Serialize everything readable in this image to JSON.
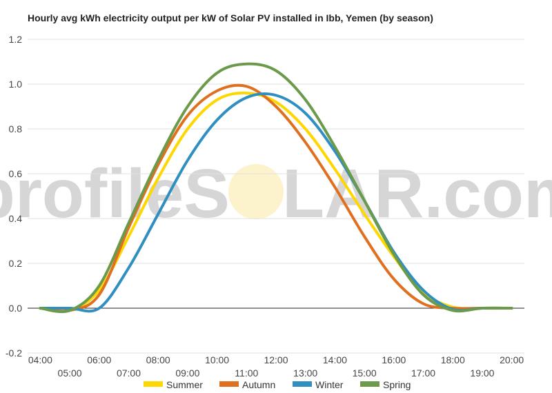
{
  "watermark": {
    "left": "profileS",
    "right": "LAR.com"
  },
  "chart_data": {
    "type": "line",
    "title": "Hourly avg kWh electricity output per kW of Solar PV installed in Ibb, Yemen (by season)",
    "xlabel": "",
    "ylabel": "",
    "x_ticks": [
      "04:00",
      "05:00",
      "06:00",
      "07:00",
      "08:00",
      "09:00",
      "10:00",
      "11:00",
      "12:00",
      "13:00",
      "14:00",
      "15:00",
      "16:00",
      "17:00",
      "18:00",
      "19:00",
      "20:00"
    ],
    "y_ticks": [
      "-0.2",
      "0.0",
      "0.2",
      "0.4",
      "0.6",
      "0.8",
      "1.0",
      "1.2"
    ],
    "x_range": [
      4,
      20
    ],
    "ylim": [
      -0.2,
      1.2
    ],
    "grid": true,
    "legend": "bottom",
    "series": [
      {
        "name": "Summer",
        "color": "#FFD700",
        "x": [
          4,
          5,
          6,
          7,
          8,
          9,
          10,
          11,
          12,
          13,
          14,
          15,
          16,
          17,
          18,
          19,
          20
        ],
        "y": [
          0.0,
          -0.01,
          0.08,
          0.32,
          0.58,
          0.8,
          0.93,
          0.96,
          0.92,
          0.8,
          0.62,
          0.42,
          0.23,
          0.07,
          0.005,
          0.0,
          0.0
        ]
      },
      {
        "name": "Autumn",
        "color": "#E07020",
        "x": [
          4,
          5,
          6,
          7,
          8,
          9,
          10,
          11,
          12,
          13,
          14,
          15,
          16,
          17,
          18,
          19,
          20
        ],
        "y": [
          0.0,
          -0.01,
          0.06,
          0.36,
          0.64,
          0.86,
          0.97,
          0.99,
          0.9,
          0.74,
          0.54,
          0.32,
          0.13,
          0.02,
          0.0,
          0.0,
          0.0
        ]
      },
      {
        "name": "Winter",
        "color": "#2E8FC0",
        "x": [
          4,
          5,
          6,
          7,
          8,
          9,
          10,
          11,
          12,
          13,
          14,
          15,
          16,
          17,
          18,
          19,
          20
        ],
        "y": [
          0.0,
          0.0,
          0.0,
          0.18,
          0.42,
          0.66,
          0.84,
          0.94,
          0.95,
          0.87,
          0.7,
          0.48,
          0.25,
          0.08,
          -0.005,
          0.0,
          0.0
        ]
      },
      {
        "name": "Spring",
        "color": "#6B9A4A",
        "x": [
          4,
          5,
          6,
          7,
          8,
          9,
          10,
          11,
          12,
          13,
          14,
          15,
          16,
          17,
          18,
          19,
          20
        ],
        "y": [
          0.0,
          -0.01,
          0.1,
          0.38,
          0.66,
          0.9,
          1.05,
          1.09,
          1.06,
          0.93,
          0.72,
          0.48,
          0.24,
          0.06,
          -0.01,
          0.0,
          0.0
        ]
      }
    ]
  }
}
